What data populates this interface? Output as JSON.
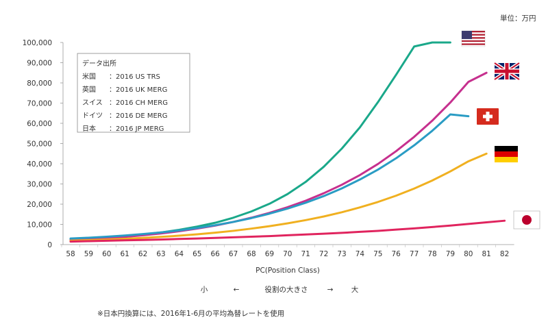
{
  "chart_data": {
    "type": "line",
    "unit_label": "単位：万円",
    "xlabel": "PC(Position Class)",
    "scale_note": {
      "left": "小",
      "arrow_left": "←",
      "middle": "役割の大きさ",
      "arrow_right": "→",
      "right": "大"
    },
    "footnote": "※日本円換算には、2016年1-6月の平均為替レートを使用",
    "x": [
      58,
      59,
      60,
      61,
      62,
      63,
      64,
      65,
      66,
      67,
      68,
      69,
      70,
      71,
      72,
      73,
      74,
      75,
      76,
      77,
      78,
      79,
      80,
      81,
      82
    ],
    "x_tick_labels": [
      "58",
      "59",
      "60",
      "61",
      "62",
      "63",
      "64",
      "65",
      "66",
      "67",
      "68",
      "69",
      "70",
      "71",
      "72",
      "73",
      "74",
      "75",
      "76",
      "77",
      "78",
      "79",
      "80",
      "81",
      "82"
    ],
    "ylim": [
      0,
      100000
    ],
    "y_ticks": [
      0,
      10000,
      20000,
      30000,
      40000,
      50000,
      60000,
      70000,
      80000,
      90000,
      100000
    ],
    "y_tick_labels": [
      "0",
      "10,000",
      "20,000",
      "30,000",
      "40,000",
      "50,000",
      "60,000",
      "70,000",
      "80,000",
      "90,000",
      "100,000"
    ],
    "grid": false,
    "legend": {
      "title": "データ出所",
      "entries": [
        {
          "country": "米国",
          "source": "：2016 US TRS"
        },
        {
          "country": "英国",
          "source": "：2016 UK MERG"
        },
        {
          "country": "スイス",
          "source": "：2016 CH MERG"
        },
        {
          "country": "ドイツ",
          "source": "：2016 DE MERG"
        },
        {
          "country": "日本",
          "source": "：2016 JP MERG"
        }
      ]
    },
    "series": [
      {
        "key": "us",
        "color": "#1aa88a",
        "flag": "us-flag",
        "x": [
          58,
          59,
          60,
          61,
          62,
          63,
          64,
          65,
          66,
          67,
          68,
          69,
          70,
          71,
          72,
          73,
          74,
          75,
          76,
          77,
          78,
          79
        ],
        "values": [
          2700,
          3100,
          3600,
          4200,
          5000,
          6000,
          7300,
          8900,
          10800,
          13300,
          16400,
          20200,
          25000,
          31000,
          38500,
          47500,
          58000,
          70500,
          84000,
          98000,
          100000,
          100000
        ]
      },
      {
        "key": "uk",
        "color": "#c6308e",
        "flag": "uk-flag",
        "x": [
          58,
          59,
          60,
          61,
          62,
          63,
          64,
          65,
          66,
          67,
          68,
          69,
          70,
          71,
          72,
          73,
          74,
          75,
          76,
          77,
          78,
          79,
          80,
          81
        ],
        "values": [
          2200,
          2700,
          3200,
          3800,
          4600,
          5500,
          6600,
          7900,
          9400,
          11200,
          13300,
          15700,
          18500,
          21700,
          25400,
          29600,
          34400,
          39900,
          46200,
          53300,
          61300,
          70300,
          80500,
          85000
        ]
      },
      {
        "key": "ch",
        "color": "#2a9cc4",
        "flag": "ch-flag",
        "x": [
          58,
          59,
          60,
          61,
          62,
          63,
          64,
          65,
          66,
          67,
          68,
          69,
          70,
          71,
          72,
          73,
          74,
          75,
          76,
          77,
          78,
          79,
          80
        ],
        "values": [
          3000,
          3400,
          3900,
          4500,
          5200,
          6000,
          7000,
          8200,
          9600,
          11200,
          13100,
          15300,
          17800,
          20700,
          24000,
          27800,
          32200,
          37100,
          42700,
          49100,
          56300,
          64400,
          63500
        ]
      },
      {
        "key": "de",
        "color": "#f0b020",
        "flag": "de-flag",
        "x": [
          58,
          59,
          60,
          61,
          62,
          63,
          64,
          65,
          66,
          67,
          68,
          69,
          70,
          71,
          72,
          73,
          74,
          75,
          76,
          77,
          78,
          79,
          80,
          81
        ],
        "values": [
          1900,
          2200,
          2500,
          2900,
          3300,
          3800,
          4400,
          5100,
          5900,
          6800,
          7900,
          9100,
          10500,
          12100,
          13900,
          16000,
          18400,
          21100,
          24200,
          27700,
          31700,
          36200,
          41200,
          45000
        ]
      },
      {
        "key": "jp",
        "color": "#e0245e",
        "flag": "jp-flag",
        "x": [
          58,
          59,
          60,
          61,
          62,
          63,
          64,
          65,
          66,
          67,
          68,
          69,
          70,
          71,
          72,
          73,
          74,
          75,
          76,
          77,
          78,
          79,
          80,
          81,
          82
        ],
        "values": [
          1500,
          1700,
          1900,
          2100,
          2300,
          2500,
          2800,
          3000,
          3300,
          3600,
          3900,
          4200,
          4600,
          5000,
          5400,
          5800,
          6300,
          6800,
          7400,
          8000,
          8700,
          9400,
          10200,
          11000,
          11800
        ]
      }
    ]
  }
}
